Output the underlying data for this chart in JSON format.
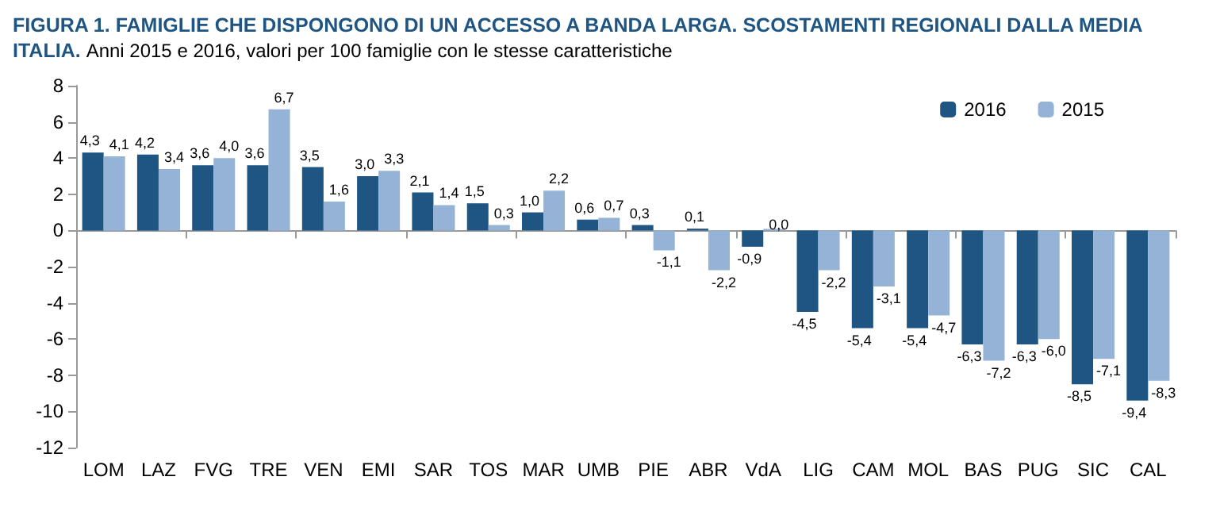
{
  "chart_data": {
    "type": "bar",
    "title": "FIGURA 1. FAMIGLIE CHE DISPONGONO DI UN ACCESSO A BANDA LARGA. SCOSTAMENTI REGIONALI DALLA MEDIA ITALIA.",
    "subtitle": "Anni 2015 e 2016, valori per 100 famiglie con le stesse caratteristiche",
    "categories": [
      "LOM",
      "LAZ",
      "FVG",
      "TRE",
      "VEN",
      "EMI",
      "SAR",
      "TOS",
      "MAR",
      "UMB",
      "PIE",
      "ABR",
      "VdA",
      "LIG",
      "CAM",
      "MOL",
      "BAS",
      "PUG",
      "SIC",
      "CAL"
    ],
    "series": [
      {
        "name": "2016",
        "color": "#1f5582",
        "values": [
          4.3,
          4.2,
          3.6,
          3.6,
          3.5,
          3.0,
          2.1,
          1.5,
          1.0,
          0.6,
          0.3,
          0.1,
          -0.9,
          -4.5,
          -5.4,
          -5.4,
          -6.3,
          -6.3,
          -8.5,
          -9.4
        ],
        "value_labels": [
          "4,3",
          "4,2",
          "3,6",
          "3,6",
          "3,5",
          "3,0",
          "2,1",
          "1,5",
          "1,0",
          "0,6",
          "0,3",
          "0,1",
          "-0,9",
          "-4,5",
          "-5,4",
          "-5,4",
          "-6,3",
          "-6,3",
          "-8,5",
          "-9,4"
        ]
      },
      {
        "name": "2015",
        "color": "#95b3d7",
        "values": [
          4.1,
          3.4,
          4.0,
          6.7,
          1.6,
          3.3,
          1.4,
          0.3,
          2.2,
          0.7,
          -1.1,
          -2.2,
          0.0,
          -2.2,
          -3.1,
          -4.7,
          -7.2,
          -6.0,
          -7.1,
          -8.3
        ],
        "value_labels": [
          "4,1",
          "3,4",
          "4,0",
          "6,7",
          "1,6",
          "3,3",
          "1,4",
          "0,3",
          "2,2",
          "0,7",
          "-1,1",
          "-2,2",
          "0,0",
          "-2,2",
          "-3,1",
          "-4,7",
          "-7,2",
          "-6,0",
          "-7,1",
          "-8,3"
        ]
      }
    ],
    "ylim": [
      -12,
      8
    ],
    "yticks": [
      -12,
      -10,
      -8,
      -6,
      -4,
      -2,
      0,
      2,
      4,
      6,
      8
    ],
    "legend": "top right"
  }
}
